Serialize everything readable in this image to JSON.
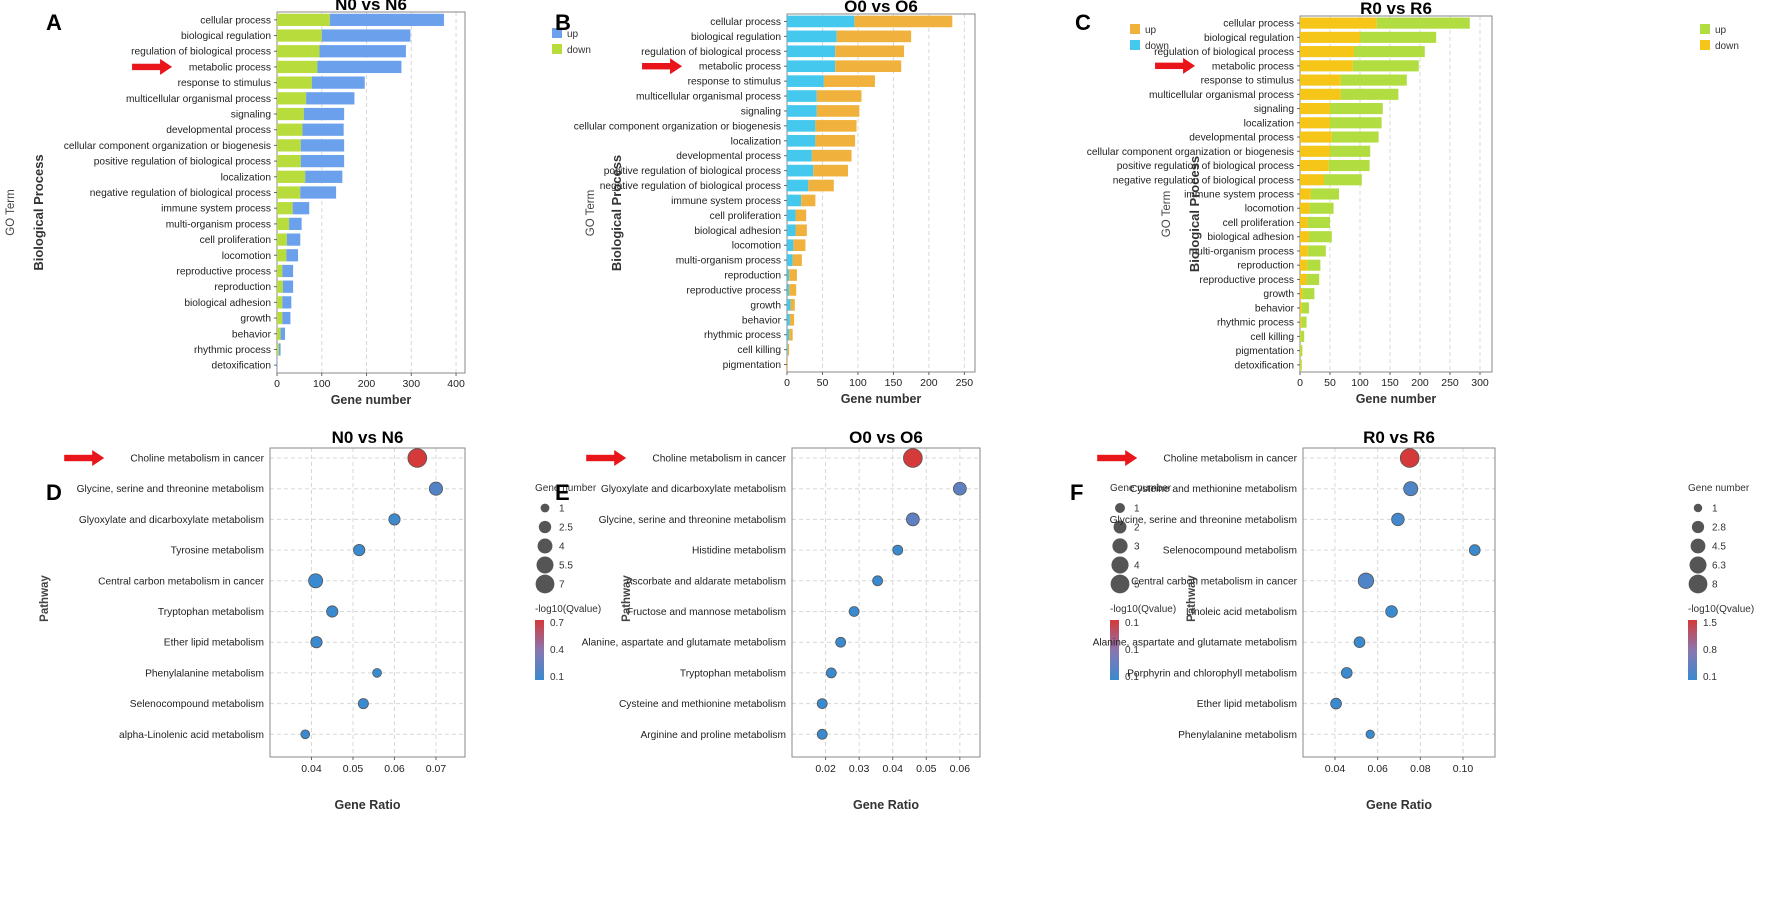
{
  "go_ylabel_outer": "GO Term",
  "go_ylabel_inner": "Biological Process",
  "go_xlabel": "Gene number",
  "kegg_ylabel": "Pathway",
  "kegg_xlabel": "Gene Ratio",
  "size_legend_title": "Gene number",
  "color_legend_title": "-log10(Qvalue)",
  "colors": {
    "blue_bar": "#6aa0ec",
    "green_bar": "#b8dc3c",
    "orange_bar": "#f0b23c",
    "cyan_bar": "#45c8ee",
    "yellow_bar": "#f5c518",
    "green_bar2": "#b2dd40",
    "arrow": "#e8151b",
    "dot_low": "#3a8ad0",
    "dot_high": "#d43a3a"
  },
  "chart_data": [
    {
      "panel": "A",
      "type": "bar",
      "stacked": true,
      "title": "N0 vs N6",
      "xlabel": "Gene number",
      "ylabel": "Biological Process",
      "xlim": [
        0,
        420
      ],
      "xticks": [
        0,
        100,
        200,
        300,
        400
      ],
      "categories": [
        "cellular process",
        "biological regulation",
        "regulation of biological process",
        "metabolic process",
        "response to stimulus",
        "multicellular organismal process",
        "signaling",
        "developmental process",
        "cellular component organization or biogenesis",
        "positive regulation of biological process",
        "localization",
        "negative regulation of biological process",
        "immune system process",
        "multi-organism process",
        "cell proliferation",
        "locomotion",
        "reproductive process",
        "reproduction",
        "biological adhesion",
        "growth",
        "behavior",
        "rhythmic process",
        "detoxification"
      ],
      "series": [
        {
          "name": "down",
          "color": "#b8dc3c",
          "values": [
            118,
            100,
            95,
            90,
            78,
            65,
            60,
            57,
            53,
            53,
            63,
            52,
            35,
            27,
            22,
            21,
            12,
            13,
            12,
            12,
            8,
            4,
            0
          ]
        },
        {
          "name": "up",
          "color": "#6aa0ec",
          "values": [
            255,
            198,
            193,
            188,
            118,
            108,
            90,
            92,
            97,
            97,
            83,
            80,
            37,
            28,
            30,
            26,
            24,
            23,
            20,
            18,
            10,
            4,
            1
          ]
        }
      ],
      "legend": [
        {
          "name": "up",
          "color": "#6aa0ec"
        },
        {
          "name": "down",
          "color": "#b8dc3c"
        }
      ],
      "highlight": "metabolic process"
    },
    {
      "panel": "B",
      "type": "bar",
      "stacked": true,
      "title": "O0 vs O6",
      "xlabel": "Gene number",
      "ylabel": "Biological Process",
      "xlim": [
        0,
        265
      ],
      "xticks": [
        0,
        50,
        100,
        150,
        200,
        250
      ],
      "categories": [
        "cellular process",
        "biological regulation",
        "regulation of biological process",
        "metabolic process",
        "response to stimulus",
        "multicellular organismal process",
        "signaling",
        "cellular component organization or biogenesis",
        "localization",
        "developmental process",
        "positive regulation of biological process",
        "negative regulation of biological process",
        "immune system process",
        "cell proliferation",
        "biological adhesion",
        "locomotion",
        "multi-organism process",
        "reproduction",
        "reproductive process",
        "growth",
        "behavior",
        "rhythmic process",
        "cell killing",
        "pigmentation"
      ],
      "series": [
        {
          "name": "down",
          "color": "#45c8ee",
          "values": [
            95,
            70,
            68,
            68,
            52,
            42,
            42,
            40,
            40,
            35,
            37,
            30,
            20,
            12,
            12,
            9,
            8,
            3,
            3,
            5,
            4,
            3,
            1,
            0
          ]
        },
        {
          "name": "up",
          "color": "#f0b23c",
          "values": [
            138,
            105,
            97,
            93,
            72,
            63,
            60,
            58,
            56,
            56,
            49,
            36,
            20,
            15,
            16,
            17,
            13,
            11,
            10,
            6,
            6,
            5,
            2,
            1
          ]
        }
      ],
      "legend": [
        {
          "name": "up",
          "color": "#f0b23c"
        },
        {
          "name": "down",
          "color": "#45c8ee"
        }
      ],
      "highlight": "metabolic process"
    },
    {
      "panel": "C",
      "type": "bar",
      "stacked": true,
      "title": "R0 vs R6",
      "xlabel": "Gene number",
      "ylabel": "Biological Process",
      "xlim": [
        0,
        320
      ],
      "xticks": [
        0,
        50,
        100,
        150,
        200,
        250,
        300
      ],
      "categories": [
        "cellular process",
        "biological regulation",
        "regulation of biological process",
        "metabolic process",
        "response to stimulus",
        "multicellular organismal process",
        "signaling",
        "localization",
        "developmental process",
        "cellular component organization or biogenesis",
        "positive regulation of biological process",
        "negative regulation of biological process",
        "immune system process",
        "locomotion",
        "cell proliferation",
        "biological adhesion",
        "multi-organism process",
        "reproduction",
        "reproductive process",
        "growth",
        "behavior",
        "rhythmic process",
        "cell killing",
        "pigmentation",
        "detoxification"
      ],
      "series": [
        {
          "name": "down",
          "color": "#f5c518",
          "values": [
            128,
            100,
            90,
            88,
            68,
            68,
            50,
            50,
            53,
            50,
            48,
            40,
            18,
            16,
            13,
            15,
            13,
            12,
            11,
            4,
            3,
            2,
            1,
            1,
            1
          ]
        },
        {
          "name": "up",
          "color": "#b2dd40",
          "values": [
            155,
            127,
            118,
            110,
            110,
            96,
            88,
            86,
            78,
            67,
            68,
            63,
            47,
            40,
            37,
            38,
            30,
            22,
            21,
            20,
            12,
            9,
            6,
            3,
            2
          ]
        }
      ],
      "legend": [
        {
          "name": "up",
          "color": "#b2dd40"
        },
        {
          "name": "down",
          "color": "#f5c518"
        }
      ],
      "highlight": "metabolic process"
    },
    {
      "panel": "D",
      "type": "scatter",
      "title": "N0 vs N6",
      "xlabel": "Gene Ratio",
      "ylabel": "Pathway",
      "xlim": [
        0.03,
        0.077
      ],
      "xticks": [
        0.04,
        0.05,
        0.06,
        0.07
      ],
      "categories": [
        "Choline metabolism in cancer",
        "Glycine, serine and threonine metabolism",
        "Glyoxylate and dicarboxylate metabolism",
        "Tyrosine metabolism",
        "Central carbon metabolism in cancer",
        "Tryptophan metabolism",
        "Ether lipid metabolism",
        "Phenylalanine metabolism",
        "Selenocompound metabolism",
        "alpha-Linolenic acid metabolism"
      ],
      "x": [
        0.0655,
        0.07,
        0.06,
        0.0515,
        0.041,
        0.045,
        0.0412,
        0.0558,
        0.0525,
        0.0385
      ],
      "size": [
        7,
        3,
        2,
        2,
        3.5,
        2,
        2,
        1,
        1.5,
        1
      ],
      "qvalue": [
        0.7,
        0.2,
        0.12,
        0.1,
        0.1,
        0.1,
        0.1,
        0.1,
        0.1,
        0.1
      ],
      "size_legend": [
        "1",
        "2.5",
        "4",
        "5.5",
        "7"
      ],
      "size_legend_values": [
        1,
        2.5,
        4,
        5.5,
        7
      ],
      "color_legend": [
        "0.7",
        "0.4",
        "0.1"
      ],
      "color_range": [
        0.1,
        0.7
      ],
      "highlight": "Choline metabolism in cancer"
    },
    {
      "panel": "E",
      "type": "scatter",
      "title": "O0 vs O6",
      "xlabel": "Gene Ratio",
      "ylabel": "Pathway",
      "xlim": [
        0.01,
        0.066
      ],
      "xticks": [
        0.02,
        0.03,
        0.04,
        0.05,
        0.06
      ],
      "categories": [
        "Choline metabolism in cancer",
        "Glyoxylate and dicarboxylate metabolism",
        "Glycine, serine and threonine metabolism",
        "Histidine metabolism",
        "Ascorbate and aldarate metabolism",
        "Fructose and mannose metabolism",
        "Alanine, aspartate and glutamate metabolism",
        "Tryptophan metabolism",
        "Cysteine and methionine metabolism",
        "Arginine and proline metabolism"
      ],
      "x": [
        0.046,
        0.06,
        0.046,
        0.0415,
        0.0355,
        0.0285,
        0.0245,
        0.0217,
        0.019,
        0.019
      ],
      "size": [
        5,
        2,
        2,
        1,
        1,
        1,
        1,
        1,
        1,
        1
      ],
      "qvalue": [
        0.1,
        0.07,
        0.07,
        0.06,
        0.06,
        0.06,
        0.06,
        0.06,
        0.06,
        0.06
      ],
      "size_legend": [
        "1",
        "2",
        "3",
        "4",
        "5"
      ],
      "size_legend_values": [
        1,
        2,
        3,
        4,
        5
      ],
      "color_legend": [
        "0.1",
        "0.1",
        "0.1"
      ],
      "color_range": [
        0.06,
        0.1
      ],
      "highlight": "Choline metabolism in cancer"
    },
    {
      "panel": "F",
      "type": "scatter",
      "title": "R0 vs R6",
      "xlabel": "Gene Ratio",
      "ylabel": "Pathway",
      "xlim": [
        0.025,
        0.115
      ],
      "xticks": [
        0.04,
        0.06,
        0.08,
        0.1
      ],
      "xtick_labels": [
        "0.04",
        "0.06",
        "0.08",
        "0.10"
      ],
      "categories": [
        "Choline metabolism in cancer",
        "Cysteine and methionine metabolism",
        "Glycine, serine and threonine metabolism",
        "Selenocompound metabolism",
        "Central carbon metabolism in cancer",
        "Linoleic acid metabolism",
        "Alanine, aspartate and glutamate metabolism",
        "Porphyrin and chlorophyll metabolism",
        "Ether lipid metabolism",
        "Phenylalanine metabolism"
      ],
      "x": [
        0.075,
        0.0755,
        0.0695,
        0.1055,
        0.0545,
        0.0665,
        0.0515,
        0.0455,
        0.0405,
        0.0565
      ],
      "size": [
        8,
        4,
        3,
        2,
        5,
        2.5,
        2,
        2,
        2,
        1
      ],
      "qvalue": [
        1.5,
        0.3,
        0.2,
        0.1,
        0.3,
        0.1,
        0.1,
        0.1,
        0.1,
        0.1
      ],
      "size_legend": [
        "1",
        "2.8",
        "4.5",
        "6.3",
        "8"
      ],
      "size_legend_values": [
        1,
        2.8,
        4.5,
        6.3,
        8
      ],
      "color_legend": [
        "1.5",
        "0.8",
        "0.1"
      ],
      "color_range": [
        0.1,
        1.5
      ],
      "highlight": "Choline metabolism in cancer"
    }
  ]
}
